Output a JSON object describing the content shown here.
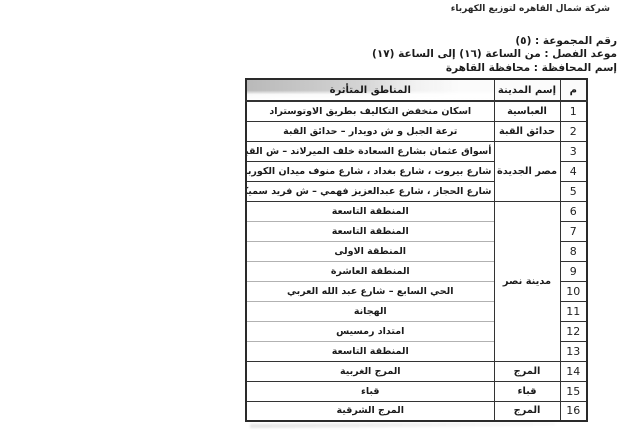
{
  "company_name": "شركة شمال القاهره  لتوزيع الكهرباء",
  "meta": {
    "group_line": "رقم المجموعة : (٥)",
    "time_line": "موعد الفصل : من الساعة (١٦) إلى الساعة (١٧)",
    "governorate_line": "إسم المحافظة : محافظة القاهرة"
  },
  "table": {
    "headers": {
      "num": "م",
      "city": "إسم المدينة",
      "areas": "المناطق المتأثرة"
    },
    "rows": [
      {
        "num": "1",
        "city": "العباسية",
        "area": "اسكان منخفض التكاليف  بطريق الاوتوستراد"
      },
      {
        "num": "2",
        "city": "حدائق القبة",
        "area": "ترعة الجبل و ش دويدار – حدائق القبة"
      },
      {
        "num": "3",
        "city": "مصر الجديدة",
        "area": "أسواق عثمان بشارع السعادة  خلف الميرلاند – ش القبة"
      },
      {
        "num": "4",
        "area": "شارع بيروت ، شارع بغداد ، شارع منوف  ميدان الكوربة"
      },
      {
        "num": "5",
        "area": "شارع الحجاز ، شارع عبدالعزيز فهمي – ش فريد سميكة –ميدان الحجاز"
      },
      {
        "num": "6",
        "city": "مدينة نصر",
        "area": "المنطقة التاسعة"
      },
      {
        "num": "7",
        "area": "المنطقة التاسعة"
      },
      {
        "num": "8",
        "area": "المنطقة الاولى"
      },
      {
        "num": "9",
        "area": "المنطقة العاشرة"
      },
      {
        "num": "10",
        "area": "الحي السابع – شارع عبد الله العربي"
      },
      {
        "num": "11",
        "area": "الهجانة"
      },
      {
        "num": "12",
        "area": "امتداد رمسيس"
      },
      {
        "num": "13",
        "area": "المنطقة التاسعة"
      },
      {
        "num": "14",
        "city": "المرج",
        "area": "المرج الغربية"
      },
      {
        "num": "15",
        "city": "قباء",
        "area": "قباء"
      },
      {
        "num": "16",
        "city": "المرج",
        "area": "المرج الشرقية"
      }
    ]
  }
}
